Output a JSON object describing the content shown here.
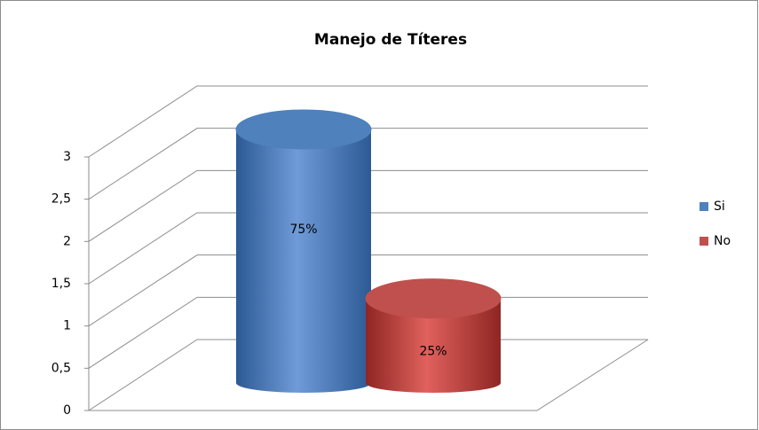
{
  "chart_data": {
    "type": "bar",
    "title": "Manejo de Títeres",
    "categories": [
      null
    ],
    "series": [
      {
        "name": "Si",
        "color": "#4f81bd",
        "values": [
          3
        ],
        "value_labels": [
          "75%"
        ]
      },
      {
        "name": "No",
        "color": "#c0504d",
        "values": [
          1
        ],
        "value_labels": [
          "25%"
        ]
      }
    ],
    "ylim": [
      0,
      3
    ],
    "yticks": [
      0,
      {
        "value": 0.5,
        "label": "0,5"
      },
      1,
      {
        "value": 1.5,
        "label": "1,5"
      },
      2,
      {
        "value": 2.5,
        "label": "2,5"
      },
      3
    ],
    "grid": true,
    "legend": "right"
  }
}
